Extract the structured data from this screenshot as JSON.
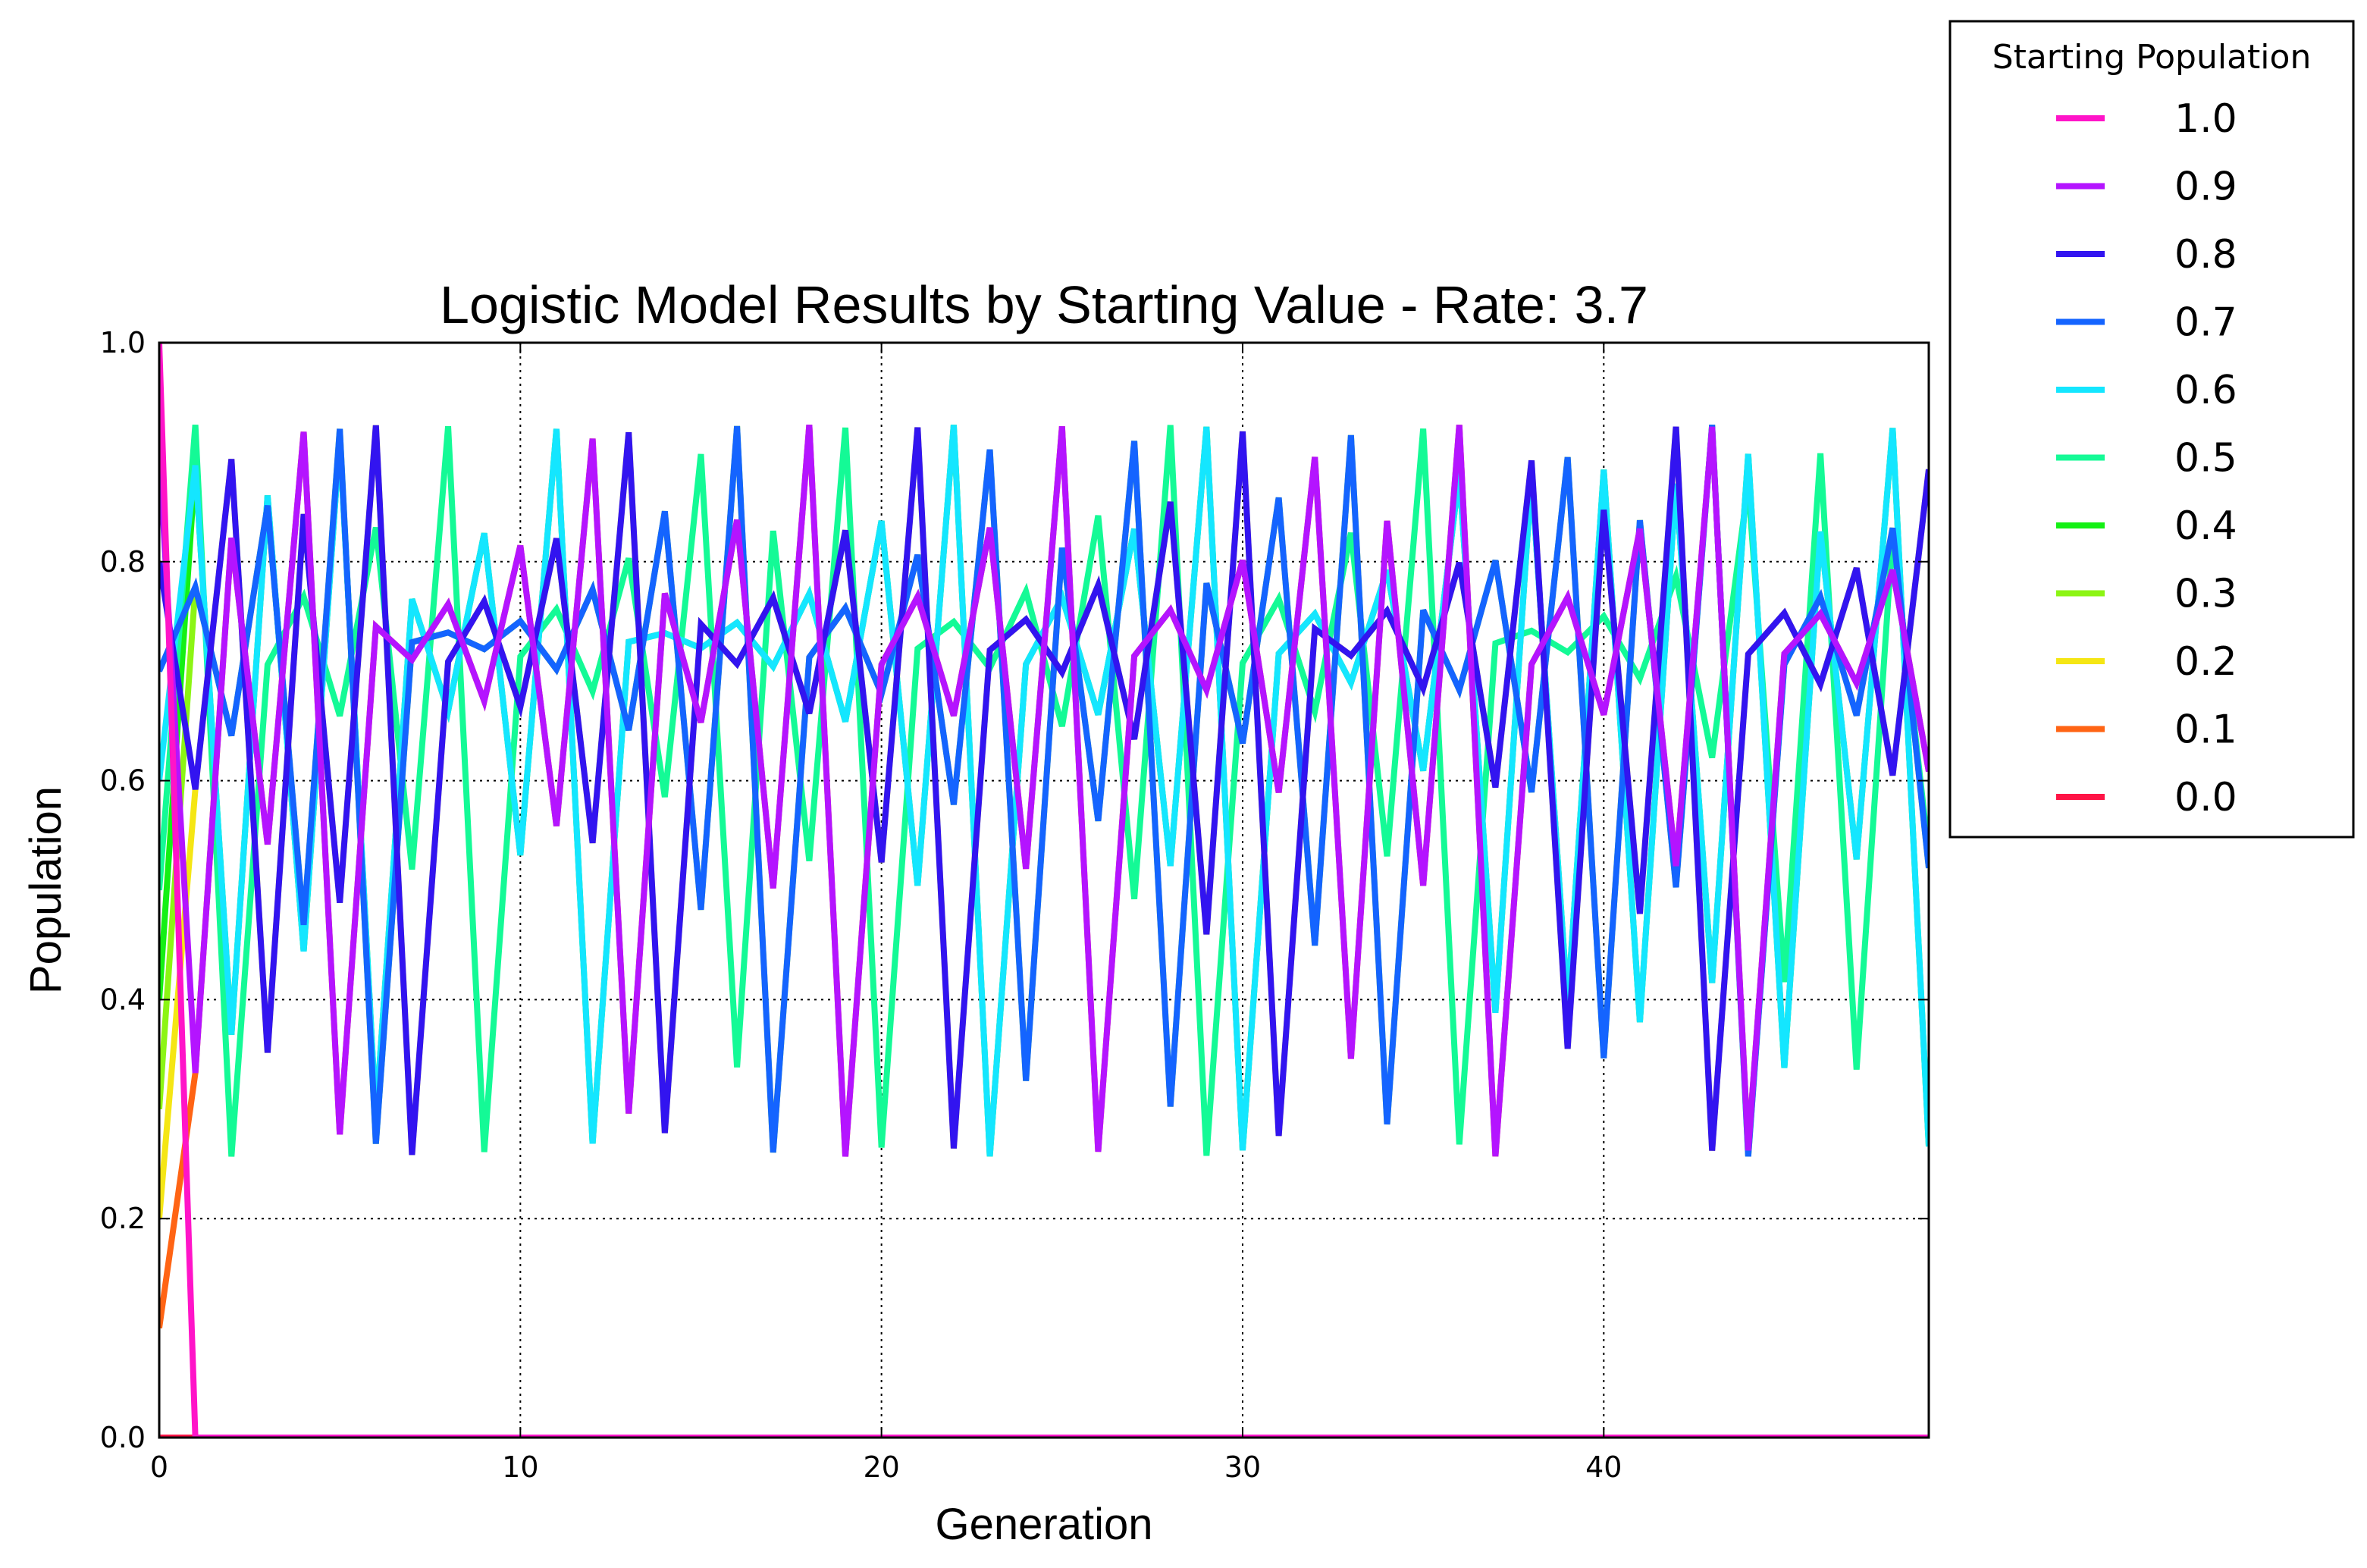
{
  "chart_data": {
    "type": "line",
    "title": "Logistic Model Results by Starting Value - Rate: 3.7",
    "xlabel": "Generation",
    "ylabel": "Population",
    "xlim": [
      0,
      49
    ],
    "ylim": [
      0.0,
      1.0
    ],
    "x_ticks": [
      0,
      10,
      20,
      30,
      40
    ],
    "x_tick_labels": [
      "0",
      "10",
      "20",
      "30",
      "40"
    ],
    "y_ticks": [
      0.0,
      0.2,
      0.4,
      0.6,
      0.8,
      1.0
    ],
    "y_tick_labels": [
      "0.0",
      "0.2",
      "0.4",
      "0.6",
      "0.8",
      "1.0"
    ],
    "grid": true,
    "legend": {
      "title": "Starting Population",
      "placement": "outside-top-right"
    },
    "rate": 3.7,
    "generations": 50,
    "series": [
      {
        "name": "1.0",
        "start": 1.0,
        "color": "#ff14c8"
      },
      {
        "name": "0.9",
        "start": 0.9,
        "color": "#b414ff"
      },
      {
        "name": "0.8",
        "start": 0.8,
        "color": "#3214f0"
      },
      {
        "name": "0.7",
        "start": 0.7,
        "color": "#1464ff"
      },
      {
        "name": "0.6",
        "start": 0.6,
        "color": "#14e6ff"
      },
      {
        "name": "0.5",
        "start": 0.5,
        "color": "#14fa96"
      },
      {
        "name": "0.4",
        "start": 0.4,
        "color": "#14f014"
      },
      {
        "name": "0.3",
        "start": 0.3,
        "color": "#8cf514"
      },
      {
        "name": "0.2",
        "start": 0.2,
        "color": "#f5e614"
      },
      {
        "name": "0.1",
        "start": 0.1,
        "color": "#ff6414"
      },
      {
        "name": "0.0",
        "start": 0.0,
        "color": "#ff1446"
      }
    ]
  }
}
